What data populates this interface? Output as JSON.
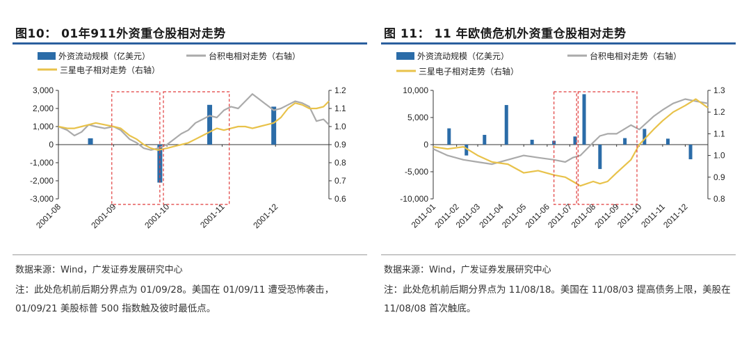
{
  "colors": {
    "bar": "#2b6ca8",
    "tsmc": "#aaaaaa",
    "samsung": "#e8c24a",
    "highlight": "#e03a3a",
    "rule": "#2b5f9e"
  },
  "left": {
    "title": "图10： 01年911外资重仓股相对走势",
    "source": "数据来源：Wind，广发证券发展研究中心",
    "note": "注：此处危机前后期分界点为 01/09/28。美国在 01/09/11 遭受恐怖袭击，01/09/21 美股标普 500 指数触及彼时最低点。",
    "legend": {
      "bar": "外资流动规模（亿美元）",
      "tsmc": "台积电相对走势（右轴）",
      "samsung": "三星电子相对走势（右轴）"
    }
  },
  "right": {
    "title": "图 11： 11 年欧债危机外资重仓股相对走势",
    "source": "数据来源：Wind，广发证券发展研究中心",
    "note": "注：此处危机前后期分界点为 11/08/18。美国在 11/08/03 提高债务上限，美股在 11/08/08 首次触底。",
    "legend": {
      "bar": "外资流动规模（亿美元）",
      "tsmc": "台积电相对走势（右轴）",
      "samsung": "三星电子相对走势（右轴）"
    }
  },
  "chart_data": [
    {
      "type": "bar",
      "title": "01年911外资重仓股相对走势",
      "x_range": [
        "2001-08-01",
        "2001-12-31"
      ],
      "x_tick_labels": [
        "2001-08",
        "2001-09",
        "2001-10",
        "2001-11",
        "2001-12"
      ],
      "x_tick_dates": [
        "2001-08-01",
        "2001-09-01",
        "2001-10-01",
        "2001-11-01",
        "2001-12-01"
      ],
      "y_left": {
        "range": [
          -3000,
          3000
        ],
        "ticks": [
          -3000,
          -2000,
          -1000,
          0,
          1000,
          2000,
          3000
        ],
        "tick_labels": [
          "-3,000",
          "-2,000",
          "-1,000",
          "0",
          "1,000",
          "2,000",
          "3,000"
        ]
      },
      "y_right": {
        "range": [
          0.6,
          1.2
        ],
        "ticks": [
          0.6,
          0.7,
          0.8,
          0.9,
          1.0,
          1.1,
          1.2
        ],
        "tick_labels": [
          "0.6",
          "0.7",
          "0.8",
          "0.9",
          "1.0",
          "1.1",
          "1.2"
        ]
      },
      "bars": {
        "name": "外资流动规模（亿美元）",
        "dates": [
          "2001-08-19",
          "2001-09-27",
          "2001-10-25",
          "2001-11-30"
        ],
        "values": [
          350,
          -2100,
          2200,
          2100
        ]
      },
      "series": [
        {
          "name": "台积电相对走势（右轴）",
          "color": "#aaaaaa",
          "axis": "right",
          "dates": [
            "2001-08-01",
            "2001-08-06",
            "2001-08-10",
            "2001-08-14",
            "2001-08-18",
            "2001-08-22",
            "2001-08-27",
            "2001-09-01",
            "2001-09-05",
            "2001-09-10",
            "2001-09-14",
            "2001-09-18",
            "2001-09-22",
            "2001-09-26",
            "2001-10-01",
            "2001-10-05",
            "2001-10-09",
            "2001-10-13",
            "2001-10-17",
            "2001-10-21",
            "2001-10-25",
            "2001-10-29",
            "2001-11-02",
            "2001-11-06",
            "2001-11-10",
            "2001-11-14",
            "2001-11-18",
            "2001-11-22",
            "2001-11-26",
            "2001-11-30",
            "2001-12-04",
            "2001-12-08",
            "2001-12-12",
            "2001-12-16",
            "2001-12-20",
            "2001-12-24",
            "2001-12-28",
            "2001-12-31"
          ],
          "values": [
            1.0,
            0.98,
            0.95,
            0.97,
            1.01,
            1.0,
            0.99,
            1.0,
            0.98,
            0.93,
            0.91,
            0.88,
            0.87,
            0.88,
            0.9,
            0.93,
            0.96,
            0.98,
            1.02,
            1.04,
            1.06,
            1.05,
            1.09,
            1.11,
            1.1,
            1.14,
            1.18,
            1.15,
            1.12,
            1.09,
            1.1,
            1.12,
            1.14,
            1.13,
            1.11,
            1.03,
            1.04,
            1.01
          ]
        },
        {
          "name": "三星电子相对走势（右轴）",
          "color": "#e8c24a",
          "axis": "right",
          "dates": [
            "2001-08-01",
            "2001-08-06",
            "2001-08-10",
            "2001-08-14",
            "2001-08-18",
            "2001-08-22",
            "2001-08-27",
            "2001-09-01",
            "2001-09-05",
            "2001-09-10",
            "2001-09-14",
            "2001-09-18",
            "2001-09-22",
            "2001-09-26",
            "2001-10-01",
            "2001-10-05",
            "2001-10-09",
            "2001-10-13",
            "2001-10-17",
            "2001-10-21",
            "2001-10-25",
            "2001-10-29",
            "2001-11-02",
            "2001-11-06",
            "2001-11-10",
            "2001-11-14",
            "2001-11-18",
            "2001-11-22",
            "2001-11-26",
            "2001-11-30",
            "2001-12-04",
            "2001-12-08",
            "2001-12-12",
            "2001-12-16",
            "2001-12-20",
            "2001-12-24",
            "2001-12-28",
            "2001-12-31"
          ],
          "values": [
            1.0,
            0.99,
            0.99,
            1.0,
            1.01,
            1.02,
            1.01,
            1.0,
            0.99,
            0.95,
            0.93,
            0.9,
            0.88,
            0.87,
            0.88,
            0.89,
            0.9,
            0.91,
            0.93,
            0.95,
            0.97,
            0.99,
            0.98,
            0.99,
            1.0,
            1.0,
            0.99,
            1.0,
            1.01,
            1.02,
            1.05,
            1.1,
            1.13,
            1.12,
            1.1,
            1.1,
            1.11,
            1.14
          ]
        }
      ],
      "highlight_ranges": [
        [
          "2001-08-31",
          "2001-09-27"
        ],
        [
          "2001-09-29",
          "2001-11-05"
        ]
      ]
    },
    {
      "type": "bar",
      "title": "11年欧债危机外资重仓股相对走势",
      "x_range": [
        "2011-01-01",
        "2011-12-31"
      ],
      "x_tick_labels": [
        "2011-01",
        "2011-02",
        "2011-03",
        "2011-04",
        "2011-05",
        "2011-06",
        "2011-07",
        "2011-08",
        "2011-09",
        "2011-10",
        "2011-11",
        "2011-12"
      ],
      "x_tick_dates": [
        "2011-01-01",
        "2011-02-01",
        "2011-03-01",
        "2011-04-01",
        "2011-05-01",
        "2011-06-01",
        "2011-07-01",
        "2011-08-01",
        "2011-09-01",
        "2011-10-01",
        "2011-11-01",
        "2011-12-01"
      ],
      "y_left": {
        "range": [
          -10000,
          10000
        ],
        "ticks": [
          -10000,
          -5000,
          0,
          5000,
          10000
        ],
        "tick_labels": [
          "-10,000",
          "-5,000",
          "0",
          "5,000",
          "10,000"
        ]
      },
      "y_right": {
        "range": [
          0.8,
          1.3
        ],
        "ticks": [
          0.8,
          0.9,
          1.0,
          1.1,
          1.2,
          1.3
        ],
        "tick_labels": [
          "0.8",
          "0.9",
          "1.0",
          "1.1",
          "1.2",
          "1.3"
        ]
      },
      "bars": {
        "name": "外资流动规模（亿美元）",
        "dates": [
          "2011-01-22",
          "2011-02-14",
          "2011-03-10",
          "2011-04-08",
          "2011-05-12",
          "2011-06-10",
          "2011-07-08",
          "2011-07-20",
          "2011-08-10",
          "2011-09-12",
          "2011-10-08",
          "2011-11-08",
          "2011-12-08"
        ],
        "values": [
          3000,
          -2000,
          1800,
          7300,
          900,
          700,
          1500,
          9300,
          -4500,
          1200,
          2900,
          1100,
          -2700
        ]
      },
      "series": [
        {
          "name": "台积电相对走势（右轴）",
          "color": "#aaaaaa",
          "axis": "right",
          "dates": [
            "2011-01-01",
            "2011-01-20",
            "2011-02-10",
            "2011-03-01",
            "2011-03-20",
            "2011-04-10",
            "2011-05-01",
            "2011-05-20",
            "2011-06-10",
            "2011-06-25",
            "2011-07-05",
            "2011-07-15",
            "2011-08-01",
            "2011-08-10",
            "2011-08-20",
            "2011-09-01",
            "2011-09-20",
            "2011-10-01",
            "2011-10-20",
            "2011-11-01",
            "2011-11-15",
            "2011-12-01",
            "2011-12-15",
            "2011-12-31"
          ],
          "values": [
            1.03,
            1.0,
            0.98,
            0.97,
            0.96,
            0.98,
            1.0,
            0.99,
            0.98,
            0.97,
            0.99,
            1.0,
            1.06,
            1.09,
            1.1,
            1.1,
            1.14,
            1.12,
            1.18,
            1.21,
            1.24,
            1.26,
            1.25,
            1.24
          ]
        },
        {
          "name": "三星电子相对走势（右轴）",
          "color": "#e8c24a",
          "axis": "right",
          "dates": [
            "2011-01-01",
            "2011-01-20",
            "2011-02-10",
            "2011-03-01",
            "2011-03-20",
            "2011-04-10",
            "2011-05-01",
            "2011-05-20",
            "2011-06-10",
            "2011-06-25",
            "2011-07-05",
            "2011-07-15",
            "2011-08-01",
            "2011-08-10",
            "2011-08-20",
            "2011-09-01",
            "2011-09-20",
            "2011-10-01",
            "2011-10-20",
            "2011-11-01",
            "2011-11-15",
            "2011-12-01",
            "2011-12-15",
            "2011-12-31"
          ],
          "values": [
            1.04,
            1.03,
            1.04,
            1.0,
            0.97,
            0.96,
            0.92,
            0.93,
            0.91,
            0.9,
            0.88,
            0.86,
            0.88,
            0.87,
            0.88,
            0.92,
            0.98,
            1.05,
            1.12,
            1.16,
            1.2,
            1.23,
            1.26,
            1.22
          ]
        }
      ],
      "highlight_ranges": [
        [
          "2011-06-10",
          "2011-07-10"
        ],
        [
          "2011-07-12",
          "2011-09-28"
        ]
      ]
    }
  ]
}
